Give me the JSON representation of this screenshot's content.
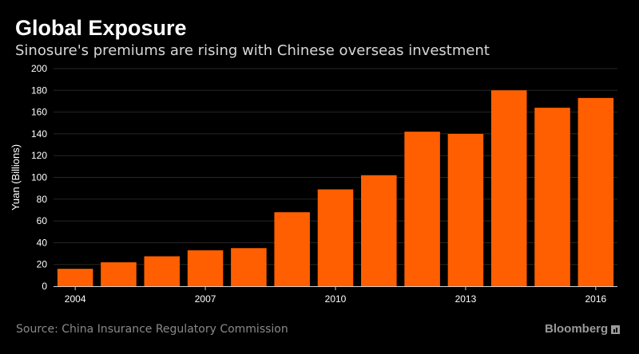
{
  "header": {
    "title": "Global Exposure",
    "subtitle": "Sinosure's premiums are rising with Chinese overseas investment"
  },
  "footer": {
    "source": "Source: China Insurance Regulatory Commission",
    "brand": "Bloomberg",
    "brand_icon": "bloomberg-chart-icon"
  },
  "colors": {
    "bar": "#ff5f00",
    "grid": "#262626",
    "background": "#000000"
  },
  "chart_data": {
    "type": "bar",
    "title": "Global Exposure",
    "subtitle": "Sinosure's premiums are rising with Chinese overseas investment",
    "ylabel": "Yuan (Billions)",
    "xlabel": "",
    "ylim": [
      0,
      200
    ],
    "yticks": [
      0,
      20,
      40,
      60,
      80,
      100,
      120,
      140,
      160,
      180,
      200
    ],
    "categories": [
      "2004",
      "2005",
      "2006",
      "2007",
      "2008",
      "2009",
      "2010",
      "2011",
      "2012",
      "2013",
      "2014",
      "2015",
      "2016"
    ],
    "xtick_labels": [
      "2004",
      "2007",
      "2010",
      "2013",
      "2016"
    ],
    "values": [
      16,
      22,
      27.5,
      33,
      35,
      68,
      89,
      102,
      142,
      140,
      180,
      164,
      173
    ],
    "grid": true,
    "legend": "none"
  }
}
